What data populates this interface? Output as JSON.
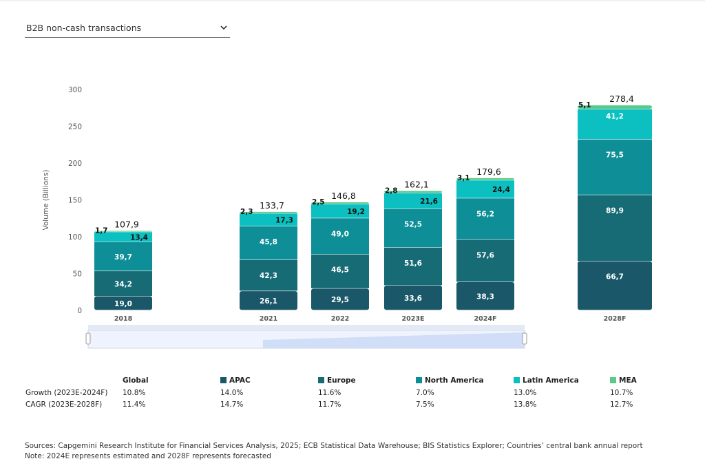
{
  "dropdown": {
    "label": "B2B non-cash transactions",
    "icon": "chevron-down-icon"
  },
  "chart_data": {
    "type": "bar",
    "stacked": true,
    "ylabel": "Volume (Billions)",
    "ylim": [
      0,
      300
    ],
    "yticks": [
      0,
      50,
      100,
      150,
      200,
      250,
      300
    ],
    "grid": false,
    "categories": [
      "2018",
      "2021",
      "2022",
      "2023E",
      "2024F",
      "2028F"
    ],
    "totals": [
      "107,9",
      "133,7",
      "146,8",
      "162,1",
      "179,6",
      "278,4"
    ],
    "series": [
      {
        "name": "APAC",
        "color": "#1a5768",
        "values": [
          19.0,
          26.1,
          29.5,
          33.6,
          38.3,
          66.7
        ],
        "labels": [
          "19,0",
          "26,1",
          "29,5",
          "33,6",
          "38,3",
          "66,7"
        ]
      },
      {
        "name": "Europe",
        "color": "#166b75",
        "values": [
          34.2,
          42.3,
          46.5,
          51.6,
          57.6,
          89.9
        ],
        "labels": [
          "34,2",
          "42,3",
          "46,5",
          "51,6",
          "57,6",
          "89,9"
        ]
      },
      {
        "name": "North America",
        "color": "#0e8e97",
        "values": [
          39.7,
          45.8,
          49.0,
          52.5,
          56.2,
          75.5
        ],
        "labels": [
          "39,7",
          "45,8",
          "49,0",
          "52,5",
          "56,2",
          "75,5"
        ]
      },
      {
        "name": "Latin America",
        "color": "#0cc0c1",
        "values": [
          13.4,
          17.3,
          19.2,
          21.6,
          24.4,
          41.2
        ],
        "labels": [
          "13,4",
          "17,3",
          "19,2",
          "21,6",
          "24,4",
          "41,2"
        ]
      },
      {
        "name": "MEA",
        "color": "#5cc98a",
        "values": [
          1.7,
          2.3,
          2.5,
          2.8,
          3.1,
          5.1
        ],
        "labels": [
          "1,7",
          "2,3",
          "2,5",
          "2,8",
          "3,1",
          "5,1"
        ]
      }
    ]
  },
  "table": {
    "headers": [
      "Global",
      "APAC",
      "Europe",
      "North America",
      "Latin America",
      "MEA"
    ],
    "header_colors": [
      "",
      "#1a5768",
      "#166b75",
      "#0e8e97",
      "#0cc0c1",
      "#5cc98a"
    ],
    "rows": [
      {
        "label": "Growth (2023E-2024F)",
        "values": [
          "10.8%",
          "14.0%",
          "11.6%",
          "7.0%",
          "13.0%",
          "10.7%"
        ]
      },
      {
        "label": "CAGR (2023E-2028F)",
        "values": [
          "11.4%",
          "14.7%",
          "11.7%",
          "7.5%",
          "13.8%",
          "12.7%"
        ]
      }
    ]
  },
  "notes": {
    "sources": "Sources: Capgemini Research Institute for Financial Services Analysis, 2025; ECB Statistical Data Warehouse; BIS Statistics Explorer; Countries’ central bank annual report",
    "note": "Note: 2024E represents estimated and 2028F represents forecasted"
  }
}
